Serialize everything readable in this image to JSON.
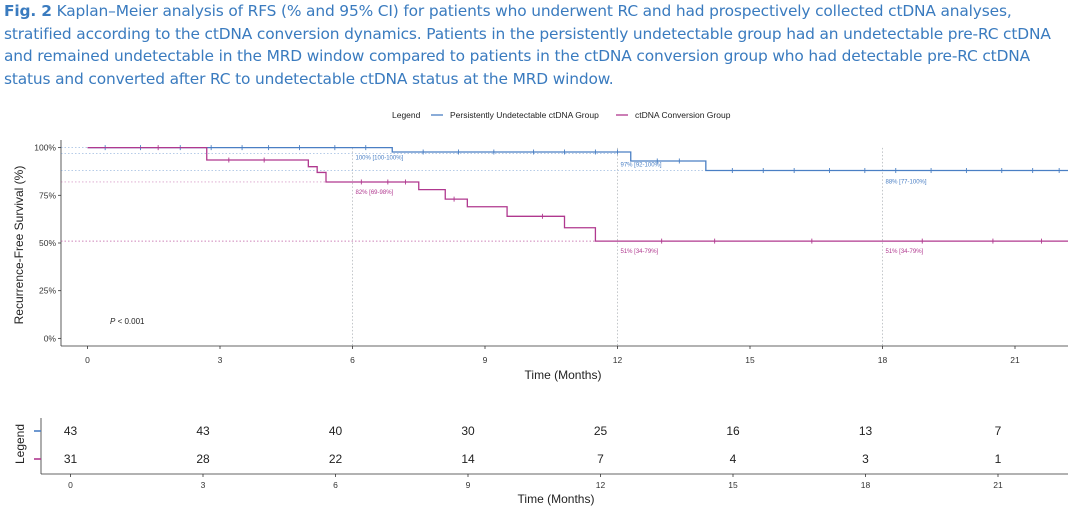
{
  "caption": {
    "label": "Fig. 2",
    "text": "Kaplan–Meier analysis of RFS (% and 95% CI) for patients who underwent RC and had prospectively collected ctDNA analyses, stratified according to the ctDNA conversion dynamics. Patients in the persistently undetectable group had an undetectable pre-RC ctDNA and remained undetectable in the MRD window compared to patients in the ctDNA conversion group who had detectable pre-RC ctDNA status and converted after RC to undetectable ctDNA status at the MRD window."
  },
  "colors": {
    "blue": "#4a7fc4",
    "magenta": "#b0388f",
    "caption": "#3a7bbf"
  },
  "chart_data": {
    "type": "line",
    "subtype": "kaplan-meier-step",
    "title": "",
    "xlabel": "Time (Months)",
    "ylabel": "Recurrence-Free Survival (%)",
    "xlim": [
      -0.6,
      22.2
    ],
    "ylim": [
      -0.04,
      1.04
    ],
    "xticks": [
      0,
      3,
      6,
      9,
      12,
      15,
      18,
      21
    ],
    "xtick_labels": [
      "0",
      "3",
      "6",
      "9",
      "12",
      "15",
      "18",
      "21"
    ],
    "yticks": [
      0,
      0.25,
      0.5,
      0.75,
      1.0
    ],
    "ytick_labels": [
      "0%",
      "25%",
      "50%",
      "75%",
      "100%"
    ],
    "legend_title": "Legend",
    "legend_position": "top",
    "pvalue_prefix": "P",
    "pvalue_rest": " < 0.001",
    "reference_times": [
      6,
      12,
      18
    ],
    "series": [
      {
        "name": "Persistently Undetectable ctDNA Group",
        "color": "#4a7fc4",
        "steps": [
          [
            0,
            1.0
          ],
          [
            6.9,
            0.977
          ],
          [
            12.3,
            0.93
          ],
          [
            14.0,
            0.88
          ],
          [
            22.2,
            0.88
          ]
        ],
        "censors": [
          0.4,
          1.2,
          2.1,
          2.8,
          3.5,
          4.1,
          4.8,
          5.6,
          6.3,
          7.6,
          8.4,
          9.2,
          10.1,
          10.8,
          11.5,
          12.0,
          12.9,
          13.4,
          14.6,
          15.3,
          16.0,
          16.8,
          17.6,
          18.3,
          19.1,
          19.9,
          20.7,
          21.4,
          22.0
        ],
        "annotations": [
          {
            "time": 6,
            "label": "100% [100-100%]",
            "y": 1.0
          },
          {
            "time": 12,
            "label": "97% [92-100%]",
            "y": 0.97
          },
          {
            "time": 18,
            "label": "88% [77-100%]",
            "y": 0.88
          }
        ]
      },
      {
        "name": "ctDNA Conversion Group",
        "color": "#b0388f",
        "steps": [
          [
            0,
            1.0
          ],
          [
            2.7,
            0.935
          ],
          [
            5.0,
            0.9
          ],
          [
            5.2,
            0.87
          ],
          [
            5.4,
            0.82
          ],
          [
            7.5,
            0.78
          ],
          [
            8.1,
            0.73
          ],
          [
            8.6,
            0.69
          ],
          [
            9.5,
            0.64
          ],
          [
            10.8,
            0.58
          ],
          [
            11.5,
            0.51
          ],
          [
            22.2,
            0.51
          ]
        ],
        "censors": [
          1.6,
          3.2,
          4.0,
          6.2,
          6.8,
          7.2,
          8.3,
          10.3,
          13.0,
          14.2,
          16.4,
          18.9,
          20.5,
          21.6
        ],
        "annotations": [
          {
            "time": 6,
            "label": "82% [69-98%]",
            "y": 0.82
          },
          {
            "time": 12,
            "label": "51% [34-79%]",
            "y": 0.51
          },
          {
            "time": 18,
            "label": "51% [34-79%]",
            "y": 0.51
          }
        ]
      }
    ],
    "risk_table": {
      "ylabel": "Legend",
      "xlabel": "Time (Months)",
      "times": [
        0,
        3,
        6,
        9,
        12,
        15,
        18,
        21
      ],
      "rows": [
        {
          "series": "Persistently Undetectable ctDNA Group",
          "counts": [
            43,
            43,
            40,
            30,
            25,
            16,
            13,
            7
          ]
        },
        {
          "series": "ctDNA Conversion Group",
          "counts": [
            31,
            28,
            22,
            14,
            7,
            4,
            3,
            1
          ]
        }
      ]
    }
  }
}
